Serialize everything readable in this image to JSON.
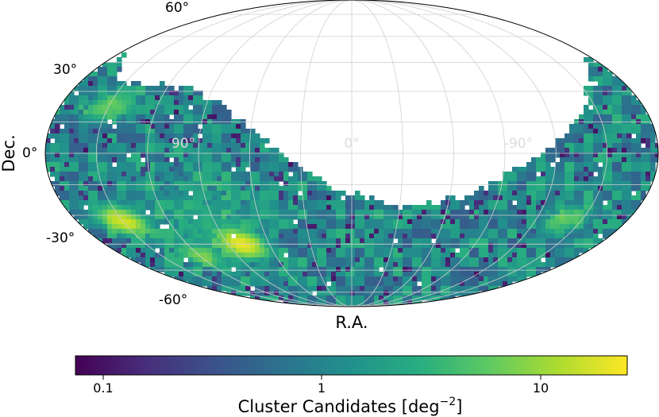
{
  "chart_data": {
    "type": "heatmap",
    "projection": "mollweide",
    "xlabel": "R.A.",
    "ylabel": "Dec.",
    "dec_ticks": [
      {
        "value": 60,
        "label": "60°"
      },
      {
        "value": 30,
        "label": "30°"
      },
      {
        "value": 0,
        "label": "0°"
      },
      {
        "value": -30,
        "label": "-30°"
      },
      {
        "value": -60,
        "label": "-60°"
      }
    ],
    "ra_ticks": [
      {
        "value": 90,
        "label": "90°"
      },
      {
        "value": 0,
        "label": "0°"
      },
      {
        "value": -90,
        "label": "-90°"
      }
    ],
    "grid": true,
    "colormap": "viridis",
    "colorbar": {
      "orientation": "horizontal",
      "scale": "log",
      "range": [
        0.07,
        25
      ],
      "ticks": [
        {
          "value": 0.1,
          "label": "0.1"
        },
        {
          "value": 1,
          "label": "1"
        },
        {
          "value": 10,
          "label": "10"
        }
      ],
      "label": "Cluster Candidates [deg",
      "label_exponent": "−2",
      "label_suffix": "]"
    },
    "hotspots": [
      {
        "ra": 80,
        "dec": -45,
        "value": 20
      },
      {
        "ra": 150,
        "dec": -33,
        "value": 15
      },
      {
        "ra": 120,
        "dec": -52,
        "value": 6
      },
      {
        "ra": 150,
        "dec": 22,
        "value": 5
      },
      {
        "ra": -140,
        "dec": -32,
        "value": 5
      }
    ],
    "background_level": 1.1
  }
}
